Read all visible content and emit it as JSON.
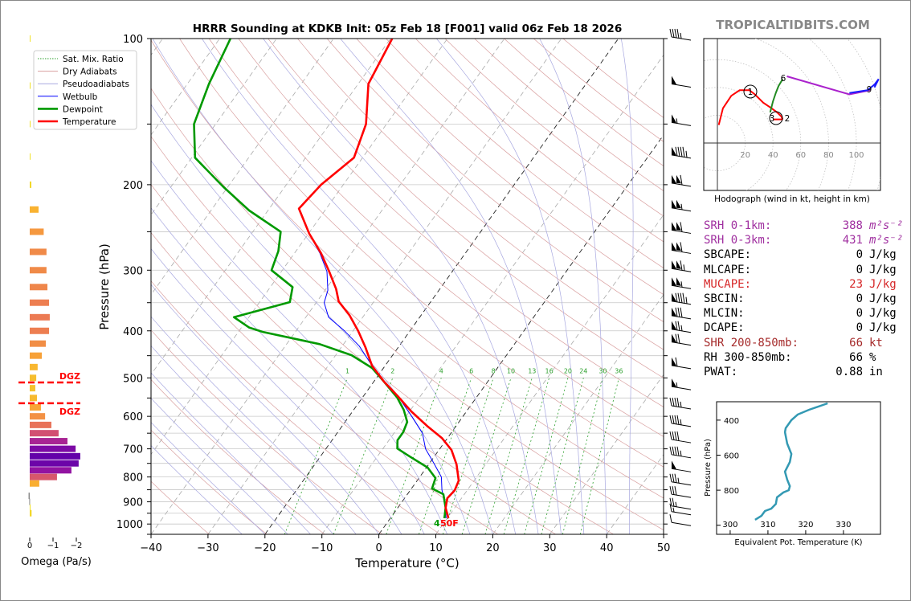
{
  "watermark": "TROPICALTIDBITS.COM",
  "chart_data": [
    {
      "id": "skewt",
      "type": "line",
      "title": "HRRR Sounding at KDKB Init: 05z Feb 18 [F001] valid 06z Feb 18 2026",
      "xlabel": "Temperature (°C)",
      "ylabel": "Pressure (hPa)",
      "xlim": [
        -40,
        50
      ],
      "ylim": [
        1050,
        100
      ],
      "x_ticks": [
        "−40",
        "−30",
        "−20",
        "−10",
        "0",
        "10",
        "20",
        "30",
        "40",
        "50"
      ],
      "y_ticks": [
        "100",
        "200",
        "300",
        "400",
        "500",
        "600",
        "700",
        "800",
        "900",
        "1000"
      ],
      "legend": {
        "placement": "top-left",
        "entries": [
          {
            "label": "Sat. Mix. Ratio",
            "color": "#2ca02c",
            "style": "dotted"
          },
          {
            "label": "Dry Adiabats",
            "color": "#d9a0a0",
            "style": "solid"
          },
          {
            "label": "Pseudoadiabats",
            "color": "#a8a8e0",
            "style": "solid"
          },
          {
            "label": "Wetbulb",
            "color": "#0000ff",
            "style": "solid"
          },
          {
            "label": "Dewpoint",
            "color": "#009900",
            "style": "thick"
          },
          {
            "label": "Temperature",
            "color": "#ff0000",
            "style": "thick"
          }
        ]
      },
      "mixing_ratio_labels": [
        "1",
        "2",
        "4",
        "6",
        "8",
        "10",
        "13",
        "16",
        "20",
        "24",
        "30",
        "36"
      ],
      "series": [
        {
          "name": "Temperature",
          "color": "#ff0000",
          "p": [
            100,
            124,
            150,
            176,
            200,
            224,
            252,
            277,
            302,
            328,
            348,
            372,
            400,
            432,
            472,
            509,
            545,
            586,
            628,
            665,
            704,
            754,
            814,
            852,
            885,
            926,
            973
          ],
          "T": [
            -59.7,
            -58.2,
            -53.6,
            -51.5,
            -53.9,
            -54.8,
            -49.9,
            -45.3,
            -41.6,
            -38.2,
            -36.2,
            -32.5,
            -29.1,
            -25.8,
            -22.3,
            -18.2,
            -14,
            -9.7,
            -5.1,
            -1,
            2.2,
            4.9,
            7.3,
            7.8,
            7.5,
            8.4,
            10.2
          ]
        },
        {
          "name": "Dewpoint",
          "color": "#009900",
          "p": [
            100,
            124,
            150,
            176,
            202,
            226,
            250,
            274,
            300,
            325,
            349,
            375,
            394,
            402,
            426,
            449,
            477,
            509,
            549,
            582,
            616,
            647,
            672,
            699,
            726,
            765,
            804,
            845,
            868,
            926,
            973
          ],
          "T": [
            -88.1,
            -86.2,
            -83.8,
            -79.4,
            -70.8,
            -63.3,
            -55.1,
            -53.1,
            -51.9,
            -46.1,
            -44.7,
            -52.6,
            -48.6,
            -45.7,
            -34.2,
            -27.2,
            -22,
            -18.2,
            -13.9,
            -11.2,
            -9.1,
            -8.5,
            -8.5,
            -7.5,
            -4.3,
            0.2,
            2.9,
            3.6,
            6.3,
            8.4,
            9.5
          ]
        },
        {
          "name": "Wetbulb",
          "color": "#0000ff",
          "p": [
            100,
            124,
            150,
            176,
            200,
            224,
            252,
            277,
            302,
            330,
            350,
            375,
            400,
            430,
            470,
            510,
            550,
            600,
            650,
            700,
            750,
            800,
            850,
            900,
            973
          ],
          "T": [
            -59.7,
            -58.2,
            -53.6,
            -51.5,
            -53.9,
            -54.8,
            -49.9,
            -45.5,
            -42,
            -39.5,
            -38.6,
            -36,
            -31.5,
            -27,
            -22.5,
            -18.2,
            -13.5,
            -9,
            -5,
            -2.5,
            0.8,
            3.8,
            5.5,
            7.5,
            9.8
          ]
        }
      ],
      "surface_labels": {
        "dewpoint": "4",
        "temperature": "50F"
      },
      "wind_barbs": {
        "p": [
          100,
          125,
          150,
          175,
          200,
          225,
          250,
          275,
          300,
          325,
          350,
          375,
          400,
          425,
          475,
          525,
          575,
          625,
          675,
          725,
          775,
          825,
          875,
          925,
          950,
          1000
        ],
        "speed_kt": [
          45,
          50,
          55,
          95,
          110,
          105,
          110,
          110,
          115,
          105,
          95,
          80,
          75,
          70,
          60,
          55,
          45,
          45,
          40,
          45,
          50,
          35,
          30,
          25,
          15,
          10
        ]
      }
    },
    {
      "id": "omega",
      "type": "bar",
      "xlabel": "Omega (Pa/s)",
      "x_ticks": [
        "0",
        "−1",
        "−2"
      ],
      "xlim": [
        0.5,
        -2.4
      ],
      "p": [
        100,
        125,
        150,
        175,
        200,
        225,
        250,
        275,
        300,
        325,
        350,
        375,
        400,
        425,
        450,
        475,
        500,
        525,
        550,
        575,
        600,
        625,
        650,
        675,
        700,
        725,
        750,
        775,
        800,
        825,
        875,
        900,
        925,
        950
      ],
      "values": [
        0,
        0,
        0,
        0,
        -0.07,
        -0.38,
        -0.6,
        -0.72,
        -0.72,
        -0.76,
        -0.83,
        -0.86,
        -0.83,
        -0.69,
        -0.52,
        -0.34,
        -0.28,
        -0.24,
        -0.31,
        -0.48,
        -0.66,
        -0.93,
        -1.24,
        -1.62,
        -1.97,
        -2.17,
        -2.1,
        -1.79,
        -1.17,
        -0.41,
        0.05,
        0.02,
        -0.02,
        -0.08
      ],
      "dgz": {
        "label": "DGZ",
        "top_p": 511,
        "bottom_p": 564,
        "color": "#ff0000"
      }
    },
    {
      "id": "hodograph",
      "type": "line",
      "xlabel": "Hodograph (wind in kt, height in km)",
      "ring_labels": [
        "20",
        "40",
        "60",
        "80",
        "100"
      ],
      "height_labels": [
        "1",
        "2",
        "3",
        "6",
        "9"
      ],
      "segments": [
        {
          "name": "0-3km",
          "color": "#ff0000",
          "u": [
            1,
            4,
            10,
            16,
            23,
            27,
            33,
            39,
            43,
            46,
            47
          ],
          "v": [
            13,
            25,
            34,
            38,
            38,
            35,
            29,
            25,
            22,
            19,
            17
          ]
        },
        {
          "name": "3km-storm",
          "color": "#ff0000",
          "u": [
            40,
            47
          ],
          "v": [
            17,
            17
          ]
        },
        {
          "name": "3-6km",
          "color": "#228b22",
          "u": [
            38,
            40,
            42,
            44,
            47
          ],
          "v": [
            22,
            30,
            36,
            41,
            46
          ]
        },
        {
          "name": "6-9km",
          "color": "#aa22cc",
          "u": [
            50,
            95,
            110
          ],
          "v": [
            48,
            35,
            38
          ]
        },
        {
          "name": "9-12km",
          "color": "#1a1aff",
          "u": [
            95,
            108,
            113,
            116,
            113
          ],
          "v": [
            36,
            38,
            42,
            46,
            40
          ]
        }
      ]
    },
    {
      "id": "theta_e",
      "type": "line",
      "xlabel": "Equivalent Pot. Temperature (K)",
      "ylabel": "Pressure (hPa)",
      "x_ticks": [
        "300",
        "310",
        "320",
        "330"
      ],
      "y_ticks": [
        "400",
        "600",
        "800"
      ],
      "xlim": [
        296.4,
        339.8
      ],
      "ylim": [
        1050,
        295
      ],
      "color": "#3399b3",
      "p": [
        304,
        341,
        368,
        400,
        446,
        469,
        534,
        593,
        639,
        694,
        740,
        777,
        800,
        813,
        841,
        878,
        905,
        919,
        946,
        969
      ],
      "theta_e": [
        325.8,
        320.9,
        317.9,
        316.2,
        314.7,
        314.5,
        315.1,
        316.2,
        315.8,
        314.5,
        315.1,
        315.8,
        315.5,
        314.1,
        312.4,
        312.1,
        310.9,
        309.2,
        308.3,
        306.6
      ]
    }
  ],
  "params": [
    {
      "label": "SRH 0-1km:",
      "value": "388",
      "unit": "m²s⁻²",
      "color": "#a030a0"
    },
    {
      "label": "SRH 0-3km:",
      "value": "431",
      "unit": "m²s⁻²",
      "color": "#a030a0"
    },
    {
      "label": "SBCAPE:",
      "value": "0",
      "unit": "J/kg",
      "color": "#000000"
    },
    {
      "label": "MLCAPE:",
      "value": "0",
      "unit": "J/kg",
      "color": "#000000"
    },
    {
      "label": "MUCAPE:",
      "value": "23",
      "unit": "J/kg",
      "color": "#d62728"
    },
    {
      "label": "SBCIN:",
      "value": "0",
      "unit": "J/kg",
      "color": "#000000"
    },
    {
      "label": "MLCIN:",
      "value": "0",
      "unit": "J/kg",
      "color": "#000000"
    },
    {
      "label": "DCAPE:",
      "value": "0",
      "unit": "J/kg",
      "color": "#000000"
    },
    {
      "label": "SHR 200-850mb:",
      "value": "66",
      "unit": "kt",
      "color": "#a52a2a"
    },
    {
      "label": "RH 300-850mb:",
      "value": "66",
      "unit": "%",
      "color": "#000000"
    },
    {
      "label": "PWAT:",
      "value": "0.88",
      "unit": "in",
      "color": "#000000"
    }
  ]
}
